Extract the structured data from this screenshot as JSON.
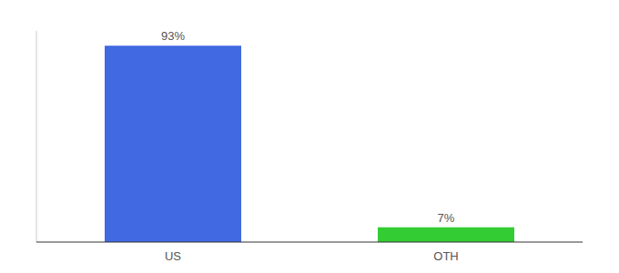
{
  "chart_data": {
    "type": "bar",
    "categories": [
      "US",
      "OTH"
    ],
    "values": [
      93,
      7
    ],
    "value_labels": [
      "93%",
      "7%"
    ],
    "colors": [
      "#4169e1",
      "#33cc33"
    ],
    "ylim": [
      0,
      100
    ],
    "data_labels": true,
    "tick_labels": "x",
    "grid": false
  }
}
